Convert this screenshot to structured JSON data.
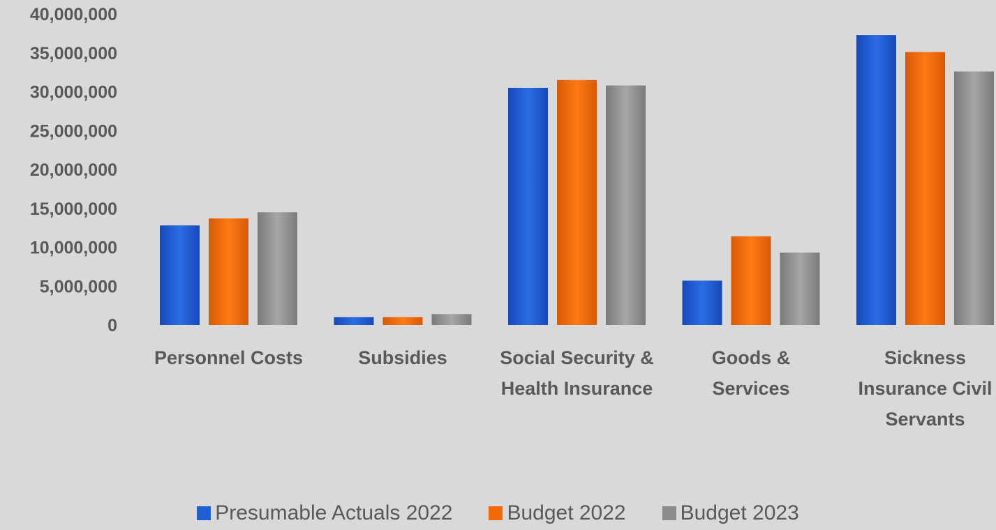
{
  "chart_data": {
    "type": "bar",
    "title": "",
    "xlabel": "",
    "ylabel": "",
    "ylim": [
      0,
      40000000
    ],
    "yticks": [
      "0",
      "5,000,000",
      "10,000,000",
      "15,000,000",
      "20,000,000",
      "25,000,000",
      "30,000,000",
      "35,000,000",
      "40,000,000"
    ],
    "categories": [
      [
        "Personnel Costs"
      ],
      [
        "Subsidies"
      ],
      [
        "Social Security &",
        "Health Insurance"
      ],
      [
        "Goods &",
        "Services"
      ],
      [
        "Sickness",
        "Insurance Civil",
        "Servants"
      ]
    ],
    "series": [
      {
        "name": "Presumable Actuals 2022",
        "color": "#1f5fd6",
        "values": [
          12800000,
          1000000,
          30500000,
          5700000,
          37300000
        ]
      },
      {
        "name": "Budget 2022",
        "color": "#f06a0a",
        "values": [
          13700000,
          1000000,
          31500000,
          11400000,
          35100000
        ]
      },
      {
        "name": "Budget 2023",
        "color": "#8c8c8c",
        "values": [
          14500000,
          1400000,
          30800000,
          9300000,
          32600000
        ]
      }
    ],
    "grid": false,
    "legend_position": "bottom-center"
  }
}
